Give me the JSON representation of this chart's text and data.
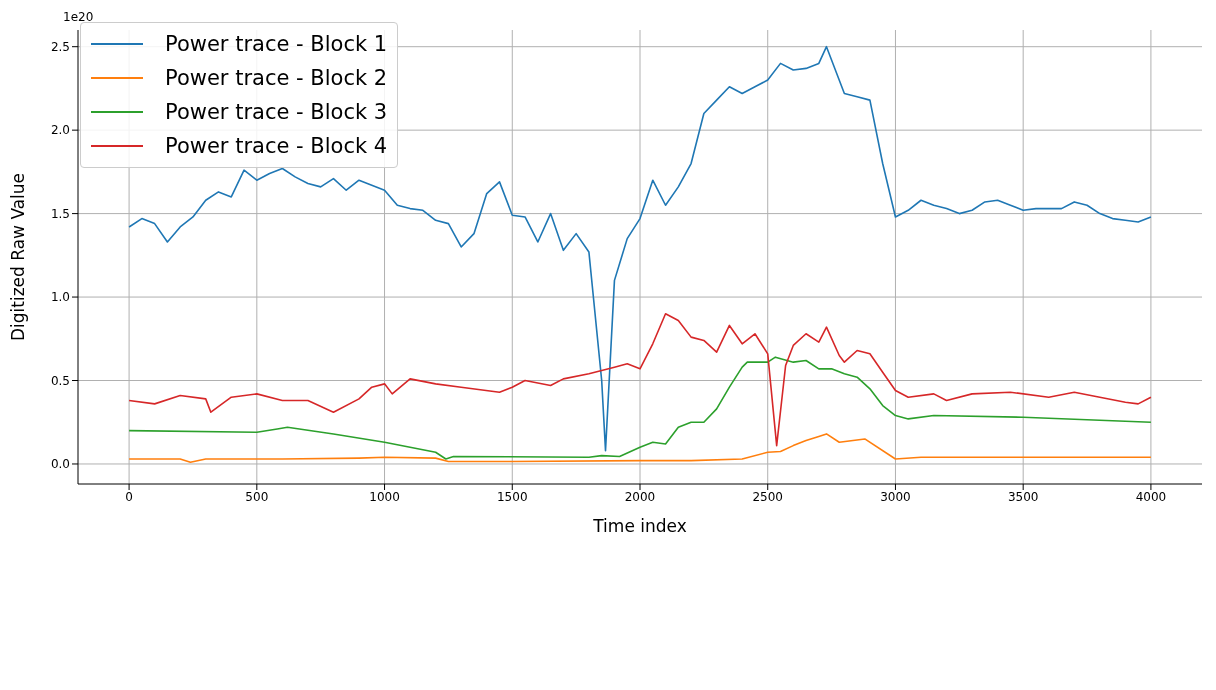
{
  "chart_data": {
    "type": "line",
    "xlabel": "Time index",
    "ylabel": "Digitized Raw Value",
    "annotations": [
      "1e20"
    ],
    "xlim": [
      -200,
      4200
    ],
    "xticks": [
      0,
      500,
      1000,
      1500,
      2000,
      2500,
      3000,
      3500,
      4000
    ],
    "ylim": [
      -0.12,
      2.6
    ],
    "yticks": [
      {
        "value": 0,
        "label": "0.0"
      },
      0.5,
      {
        "value": 1,
        "label": "1.0"
      },
      1.5,
      {
        "value": 2,
        "label": "2.0"
      },
      2.5
    ],
    "grid": true,
    "legend": "top left",
    "marker": "none",
    "line_style": "solid",
    "series": [
      {
        "name": "Power trace - Block 1",
        "color": "#1f77b4",
        "x": [
          0,
          50,
          100,
          150,
          200,
          250,
          300,
          350,
          400,
          450,
          500,
          550,
          600,
          650,
          700,
          750,
          800,
          850,
          900,
          950,
          1000,
          1050,
          1100,
          1150,
          1200,
          1250,
          1300,
          1350,
          1400,
          1450,
          1500,
          1550,
          1600,
          1650,
          1700,
          1750,
          1800,
          1850,
          1865,
          1900,
          1950,
          2000,
          2050,
          2100,
          2150,
          2200,
          2250,
          2300,
          2350,
          2400,
          2450,
          2500,
          2550,
          2600,
          2650,
          2700,
          2730,
          2800,
          2850,
          2900,
          2950,
          3000,
          3050,
          3100,
          3150,
          3200,
          3250,
          3300,
          3350,
          3400,
          3450,
          3500,
          3550,
          3600,
          3650,
          3700,
          3750,
          3800,
          3850,
          3900,
          3950,
          4000
        ],
        "values": [
          1.42,
          1.47,
          1.44,
          1.33,
          1.42,
          1.48,
          1.58,
          1.63,
          1.6,
          1.76,
          1.7,
          1.74,
          1.77,
          1.72,
          1.68,
          1.66,
          1.71,
          1.64,
          1.7,
          1.67,
          1.64,
          1.55,
          1.53,
          1.52,
          1.46,
          1.44,
          1.3,
          1.38,
          1.62,
          1.69,
          1.49,
          1.48,
          1.33,
          1.5,
          1.28,
          1.38,
          1.27,
          0.5,
          0.08,
          1.1,
          1.35,
          1.47,
          1.7,
          1.55,
          1.66,
          1.8,
          2.1,
          2.18,
          2.26,
          2.22,
          2.26,
          2.3,
          2.4,
          2.36,
          2.37,
          2.4,
          2.5,
          2.22,
          2.2,
          2.18,
          1.8,
          1.48,
          1.52,
          1.58,
          1.55,
          1.53,
          1.5,
          1.52,
          1.57,
          1.58,
          1.55,
          1.52,
          1.53,
          1.53,
          1.53,
          1.57,
          1.55,
          1.5,
          1.47,
          1.46,
          1.45,
          1.48
        ]
      },
      {
        "name": "Power trace - Block 2",
        "color": "#ff7f0e",
        "x": [
          0,
          200,
          240,
          300,
          560,
          600,
          900,
          1000,
          1200,
          1250,
          1500,
          2000,
          2200,
          2400,
          2500,
          2550,
          2600,
          2650,
          2700,
          2730,
          2780,
          2880,
          3000,
          3100,
          3500,
          4000
        ],
        "values": [
          0.03,
          0.03,
          0.01,
          0.03,
          0.03,
          0.03,
          0.035,
          0.04,
          0.035,
          0.015,
          0.015,
          0.02,
          0.02,
          0.03,
          0.07,
          0.075,
          0.11,
          0.14,
          0.165,
          0.18,
          0.13,
          0.15,
          0.03,
          0.04,
          0.04,
          0.04
        ]
      },
      {
        "name": "Power trace - Block 3",
        "color": "#2ca02c",
        "x": [
          0,
          500,
          580,
          620,
          800,
          1000,
          1200,
          1240,
          1270,
          1800,
          1850,
          1920,
          2000,
          2050,
          2100,
          2150,
          2200,
          2250,
          2300,
          2350,
          2400,
          2420,
          2500,
          2530,
          2600,
          2650,
          2700,
          2750,
          2800,
          2850,
          2900,
          2950,
          3000,
          3050,
          3150,
          3500,
          4000
        ],
        "values": [
          0.2,
          0.19,
          0.21,
          0.22,
          0.18,
          0.13,
          0.07,
          0.03,
          0.045,
          0.04,
          0.05,
          0.045,
          0.1,
          0.13,
          0.12,
          0.22,
          0.25,
          0.25,
          0.33,
          0.46,
          0.58,
          0.61,
          0.61,
          0.64,
          0.61,
          0.62,
          0.57,
          0.57,
          0.54,
          0.52,
          0.45,
          0.35,
          0.29,
          0.27,
          0.29,
          0.28,
          0.25
        ]
      },
      {
        "name": "Power trace - Block 4",
        "color": "#d62728",
        "x": [
          0,
          100,
          200,
          300,
          320,
          400,
          500,
          600,
          700,
          800,
          900,
          950,
          1000,
          1030,
          1100,
          1200,
          1300,
          1450,
          1500,
          1550,
          1650,
          1700,
          1800,
          1900,
          1950,
          2000,
          2050,
          2100,
          2150,
          2200,
          2250,
          2300,
          2350,
          2400,
          2450,
          2500,
          2535,
          2570,
          2600,
          2650,
          2700,
          2730,
          2780,
          2800,
          2850,
          2900,
          2950,
          3000,
          3050,
          3150,
          3200,
          3300,
          3450,
          3600,
          3700,
          3800,
          3900,
          3950,
          4000
        ],
        "values": [
          0.38,
          0.36,
          0.41,
          0.39,
          0.31,
          0.4,
          0.42,
          0.38,
          0.38,
          0.31,
          0.39,
          0.46,
          0.48,
          0.42,
          0.51,
          0.48,
          0.46,
          0.43,
          0.46,
          0.5,
          0.47,
          0.51,
          0.54,
          0.58,
          0.6,
          0.57,
          0.72,
          0.9,
          0.86,
          0.76,
          0.74,
          0.67,
          0.83,
          0.72,
          0.78,
          0.66,
          0.11,
          0.59,
          0.71,
          0.78,
          0.73,
          0.82,
          0.65,
          0.61,
          0.68,
          0.66,
          0.55,
          0.44,
          0.4,
          0.42,
          0.38,
          0.42,
          0.43,
          0.4,
          0.43,
          0.4,
          0.37,
          0.36,
          0.4
        ]
      }
    ]
  }
}
